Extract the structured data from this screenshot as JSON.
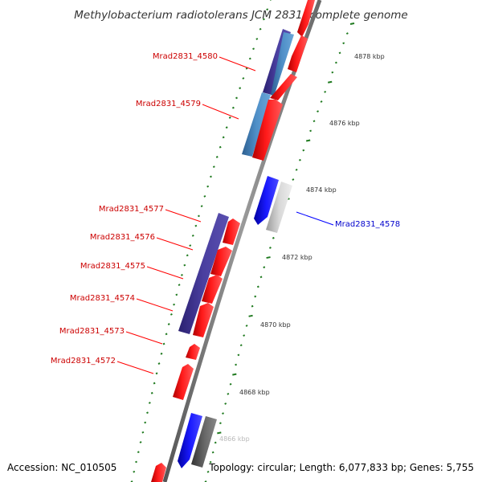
{
  "title": "Methylobacterium radiotolerans JCM 2831, complete genome",
  "footer": {
    "accession": "Accession: NC_010505",
    "summary": "Topology: circular; Length: 6,077,833 bp; Genes: 5,755"
  },
  "colors": {
    "background": "#ffffff",
    "backbone": "#808080",
    "tick": "#1f7a1f",
    "forward_gene": "#ff0000",
    "reverse_gene": "#0000ff",
    "label_forward": "#cc0000",
    "label_reverse": "#0000cc",
    "feature_dark_purple": "#3a2f8a",
    "feature_steel_blue": "#4a86c0",
    "feature_light_gray": "#c8c8c8",
    "feature_dark_gray": "#555555"
  },
  "kbp_labels": [
    "4878 kbp",
    "4876 kbp",
    "4874 kbp",
    "4872 kbp",
    "4870 kbp",
    "4868 kbp",
    "4866 kbp"
  ],
  "gene_labels": [
    {
      "name": "Mrad2831_4580",
      "strand": "forward"
    },
    {
      "name": "Mrad2831_4579",
      "strand": "forward"
    },
    {
      "name": "Mrad2831_4577",
      "strand": "forward"
    },
    {
      "name": "Mrad2831_4576",
      "strand": "forward"
    },
    {
      "name": "Mrad2831_4575",
      "strand": "forward"
    },
    {
      "name": "Mrad2831_4574",
      "strand": "forward"
    },
    {
      "name": "Mrad2831_4573",
      "strand": "forward"
    },
    {
      "name": "Mrad2831_4572",
      "strand": "forward"
    },
    {
      "name": "Mrad2831_4578",
      "strand": "reverse"
    }
  ]
}
